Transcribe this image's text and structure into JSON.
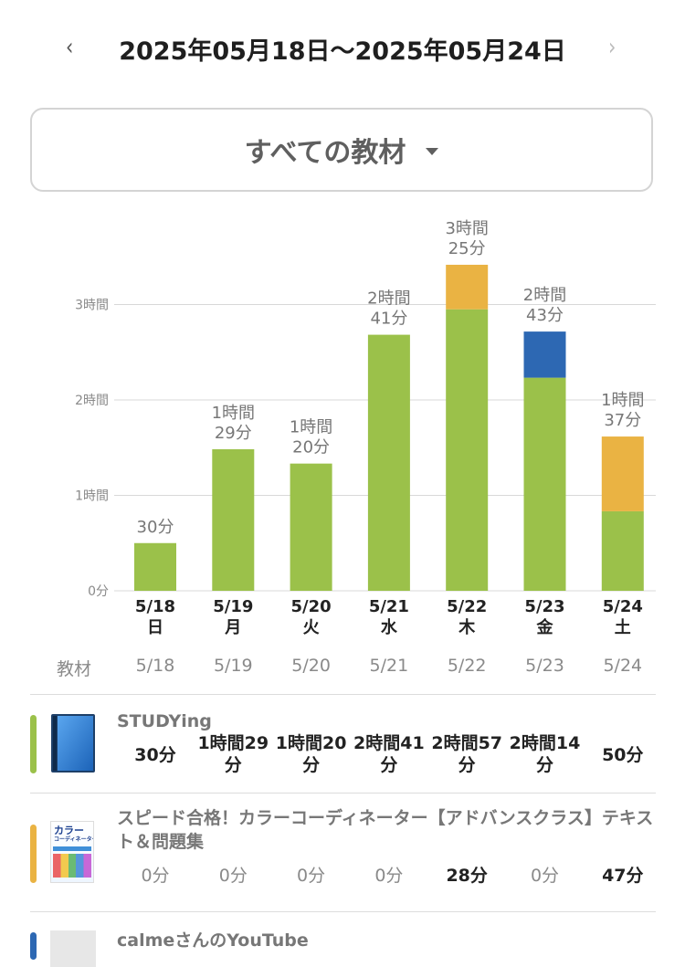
{
  "header": {
    "prev_icon": "‹",
    "next_icon": "›",
    "range_title": "2025年05月18日〜2025年05月24日"
  },
  "filter": {
    "label": "すべての教材"
  },
  "colors": {
    "green": "#9bc14a",
    "orange": "#eab343",
    "blue": "#2d68b3",
    "grid": "#d8d8d8",
    "axis_text": "#8a8a8a"
  },
  "chart_data": {
    "type": "bar",
    "stacked": true,
    "y_ticks": [
      {
        "value": 0,
        "label": "0分"
      },
      {
        "value": 60,
        "label": "1時間"
      },
      {
        "value": 120,
        "label": "2時間"
      },
      {
        "value": 180,
        "label": "3時間"
      }
    ],
    "categories": [
      {
        "date": "5/18",
        "weekday": "日"
      },
      {
        "date": "5/19",
        "weekday": "月"
      },
      {
        "date": "5/20",
        "weekday": "火"
      },
      {
        "date": "5/21",
        "weekday": "水"
      },
      {
        "date": "5/22",
        "weekday": "木"
      },
      {
        "date": "5/23",
        "weekday": "金"
      },
      {
        "date": "5/24",
        "weekday": "土"
      }
    ],
    "totals": [
      [
        "30分"
      ],
      [
        "1時間",
        "29分"
      ],
      [
        "1時間",
        "20分"
      ],
      [
        "2時間",
        "41分"
      ],
      [
        "3時間",
        "25分"
      ],
      [
        "2時間",
        "43分"
      ],
      [
        "1時間",
        "37分"
      ]
    ],
    "series": [
      {
        "color": "green",
        "values": [
          30,
          89,
          80,
          161,
          177,
          134,
          50
        ]
      },
      {
        "color": "orange",
        "values": [
          0,
          0,
          0,
          0,
          28,
          0,
          47
        ]
      },
      {
        "color": "blue",
        "values": [
          0,
          0,
          0,
          0,
          0,
          29,
          0
        ]
      }
    ]
  },
  "table": {
    "header_label": "教材",
    "dates": [
      "5/18",
      "5/19",
      "5/20",
      "5/21",
      "5/22",
      "5/23",
      "5/24"
    ],
    "rows": [
      {
        "color": "green",
        "thumb": "blue-book-icon",
        "title": "STUDYing",
        "values": [
          [
            "30分"
          ],
          [
            "1時間29",
            "分"
          ],
          [
            "1時間20",
            "分"
          ],
          [
            "2時間41",
            "分"
          ],
          [
            "2時間57",
            "分"
          ],
          [
            "2時間14",
            "分"
          ],
          [
            "50分"
          ]
        ],
        "bold": [
          true,
          true,
          true,
          true,
          true,
          true,
          true
        ]
      },
      {
        "color": "orange",
        "thumb": "color-coordinator-book-cover",
        "thumb_text": "カラー",
        "thumb_text2": "コーディネーター",
        "title": "スピード合格！カラーコーディネーター【アドバンスクラス】テキスト＆問題集",
        "values": [
          [
            "0分"
          ],
          [
            "0分"
          ],
          [
            "0分"
          ],
          [
            "0分"
          ],
          [
            "28分"
          ],
          [
            "0分"
          ],
          [
            "47分"
          ]
        ],
        "bold": [
          false,
          false,
          false,
          false,
          true,
          false,
          true
        ]
      },
      {
        "color": "blue",
        "title": "calmeさんのYouTube"
      }
    ]
  }
}
